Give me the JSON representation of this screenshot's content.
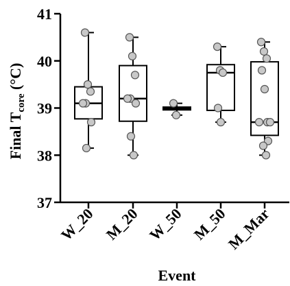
{
  "chart_data": {
    "type": "boxplot",
    "title": "",
    "xlabel": "Event",
    "ylabel_main": "Final T",
    "ylabel_sub": "core",
    "ylabel_unit": " (°C)",
    "ylim": [
      37,
      41
    ],
    "yticks": [
      "37",
      "38",
      "39",
      "40",
      "41"
    ],
    "categories": [
      "W_20",
      "M_20",
      "W_50",
      "M_50",
      "M_Mar"
    ],
    "boxes": [
      {
        "category": "W_20",
        "min": 38.15,
        "q1": 38.77,
        "median": 39.1,
        "q3": 39.45,
        "max": 40.6
      },
      {
        "category": "M_20",
        "min": 38.0,
        "q1": 38.72,
        "median": 39.2,
        "q3": 39.9,
        "max": 40.5
      },
      {
        "category": "W_50",
        "min": 38.85,
        "q1": 38.96,
        "median": 38.99,
        "q3": 39.02,
        "max": 39.1
      },
      {
        "category": "M_50",
        "min": 38.7,
        "q1": 38.95,
        "median": 39.75,
        "q3": 39.92,
        "max": 40.3
      },
      {
        "category": "M_Mar",
        "min": 38.0,
        "q1": 38.42,
        "median": 38.7,
        "q3": 39.98,
        "max": 40.4
      }
    ],
    "points": [
      [
        40.6,
        39.5,
        39.35,
        39.1,
        39.1,
        38.7,
        38.15
      ],
      [
        40.5,
        40.1,
        39.7,
        39.2,
        39.2,
        39.1,
        38.4,
        38.0
      ],
      [
        39.1,
        38.85
      ],
      [
        40.3,
        39.8,
        39.75,
        39.0,
        38.7
      ],
      [
        40.4,
        40.2,
        40.05,
        39.8,
        39.4,
        38.7,
        38.7,
        38.7,
        38.3,
        38.2,
        38.0
      ]
    ],
    "grid": false,
    "legend": "none"
  }
}
